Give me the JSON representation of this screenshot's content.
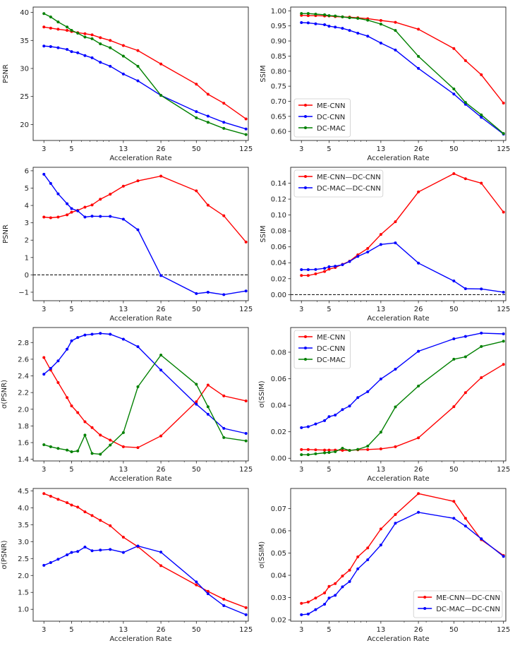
{
  "colors": {
    "ME-CNN": "#ff0000",
    "DC-CNN": "#0000ff",
    "DC-MAC": "#008000",
    "ME-CNN—DC-CNN": "#ff0000",
    "DC-MAC—DC-CNN": "#0000ff"
  },
  "chart_data": [
    {
      "type": "line",
      "xlabel": "Acceleration Rate",
      "ylabel": "PSNR",
      "xscale": "log",
      "x": [
        3,
        3.4,
        3.9,
        4.6,
        5,
        5.6,
        6.4,
        7.3,
        8.5,
        10.2,
        13,
        17,
        26,
        50,
        62,
        83,
        125
      ],
      "xticks": [
        3,
        5,
        13,
        26,
        50,
        125
      ],
      "xlim": [
        2.46,
        130.5
      ],
      "yticks": [
        20,
        25,
        30,
        35,
        40
      ],
      "ytick_labels": [
        "20",
        "25",
        "30",
        "35",
        "40"
      ],
      "ylim": [
        17.15,
        40.96
      ],
      "legend": null,
      "zero_line": false,
      "series": [
        {
          "name": "ME-CNN",
          "values": [
            37.4,
            37.2,
            37.0,
            36.8,
            36.6,
            36.4,
            36.2,
            36.0,
            35.5,
            35.0,
            34.1,
            33.2,
            30.8,
            27.2,
            25.4,
            23.8,
            21.0
          ]
        },
        {
          "name": "DC-CNN",
          "values": [
            34.0,
            33.9,
            33.7,
            33.4,
            33.0,
            32.8,
            32.3,
            31.9,
            31.1,
            30.4,
            29.0,
            27.8,
            25.2,
            22.3,
            21.5,
            20.4,
            19.2
          ]
        },
        {
          "name": "DC-MAC",
          "values": [
            39.8,
            39.2,
            38.3,
            37.4,
            36.8,
            36.3,
            35.6,
            35.3,
            34.4,
            33.7,
            32.2,
            30.4,
            25.2,
            21.2,
            20.4,
            19.3,
            18.2
          ]
        }
      ]
    },
    {
      "type": "line",
      "xlabel": "Acceleration Rate",
      "ylabel": "SSIM",
      "xscale": "log",
      "x": [
        3,
        3.4,
        3.9,
        4.6,
        5,
        5.6,
        6.4,
        7.3,
        8.5,
        10.2,
        13,
        17,
        26,
        50,
        62,
        83,
        125
      ],
      "xticks": [
        3,
        5,
        13,
        26,
        50,
        125
      ],
      "xlim": [
        2.46,
        130.5
      ],
      "yticks": [
        0.6,
        0.65,
        0.7,
        0.75,
        0.8,
        0.85,
        0.9,
        0.95,
        1.0
      ],
      "ytick_labels": [
        "0.60",
        "0.65",
        "0.70",
        "0.75",
        "0.80",
        "0.85",
        "0.90",
        "0.95",
        "1.00"
      ],
      "ylim": [
        0.57,
        1.0125
      ],
      "legend": "lower-left",
      "zero_line": false,
      "series": [
        {
          "name": "ME-CNN",
          "values": [
            0.985,
            0.984,
            0.984,
            0.983,
            0.983,
            0.981,
            0.98,
            0.979,
            0.977,
            0.974,
            0.968,
            0.962,
            0.939,
            0.875,
            0.835,
            0.788,
            0.694
          ]
        },
        {
          "name": "DC-CNN",
          "values": [
            0.961,
            0.96,
            0.957,
            0.954,
            0.949,
            0.946,
            0.942,
            0.935,
            0.926,
            0.916,
            0.893,
            0.87,
            0.809,
            0.724,
            0.69,
            0.647,
            0.591
          ]
        },
        {
          "name": "DC-MAC",
          "values": [
            0.991,
            0.991,
            0.989,
            0.987,
            0.984,
            0.983,
            0.98,
            0.977,
            0.975,
            0.969,
            0.956,
            0.935,
            0.849,
            0.741,
            0.696,
            0.655,
            0.593
          ]
        }
      ]
    },
    {
      "type": "line",
      "xlabel": "Acceleration Rate",
      "ylabel": "PSNR",
      "xscale": "log",
      "x": [
        3,
        3.4,
        3.9,
        4.6,
        5,
        5.6,
        6.4,
        7.3,
        8.5,
        10.2,
        13,
        17,
        26,
        50,
        62,
        83,
        125
      ],
      "xticks": [
        3,
        5,
        13,
        26,
        50,
        125
      ],
      "xlim": [
        2.46,
        130.5
      ],
      "yticks": [
        -1,
        0,
        1,
        2,
        3,
        4,
        5,
        6
      ],
      "ytick_labels": [
        "−1",
        "0",
        "1",
        "2",
        "3",
        "4",
        "5",
        "6"
      ],
      "ylim": [
        -1.49,
        6.2
      ],
      "legend": null,
      "zero_line": true,
      "series": [
        {
          "name": "ME-CNN—DC-CNN",
          "values": [
            3.33,
            3.29,
            3.33,
            3.46,
            3.61,
            3.72,
            3.9,
            4.03,
            4.36,
            4.65,
            5.11,
            5.42,
            5.69,
            4.84,
            4.02,
            3.41,
            1.89
          ]
        },
        {
          "name": "DC-MAC—DC-CNN",
          "values": [
            5.8,
            5.27,
            4.67,
            4.1,
            3.82,
            3.69,
            3.33,
            3.38,
            3.37,
            3.37,
            3.21,
            2.6,
            -0.04,
            -1.08,
            -1.0,
            -1.14,
            -0.93
          ]
        }
      ]
    },
    {
      "type": "line",
      "xlabel": "Acceleration Rate",
      "ylabel": "SSIM",
      "xscale": "log",
      "x": [
        3,
        3.4,
        3.9,
        4.6,
        5,
        5.6,
        6.4,
        7.3,
        8.5,
        10.2,
        13,
        17,
        26,
        50,
        62,
        83,
        125
      ],
      "xticks": [
        3,
        5,
        13,
        26,
        50,
        125
      ],
      "xlim": [
        2.46,
        130.5
      ],
      "yticks": [
        0,
        0.02,
        0.04,
        0.06,
        0.08,
        0.1,
        0.12,
        0.14
      ],
      "ytick_labels": [
        "0.00",
        "0.02",
        "0.04",
        "0.06",
        "0.08",
        "0.10",
        "0.12",
        "0.14"
      ],
      "ylim": [
        -0.0077,
        0.16
      ],
      "legend": "upper-left",
      "zero_line": true,
      "series": [
        {
          "name": "ME-CNN—DC-CNN",
          "values": [
            0.024,
            0.024,
            0.026,
            0.029,
            0.032,
            0.034,
            0.038,
            0.042,
            0.05,
            0.058,
            0.0756,
            0.0916,
            0.129,
            0.152,
            0.1456,
            0.14,
            0.1037
          ]
        },
        {
          "name": "DC-MAC—DC-CNN",
          "values": [
            0.0313,
            0.0313,
            0.0316,
            0.033,
            0.035,
            0.0357,
            0.0375,
            0.0416,
            0.048,
            0.0535,
            0.063,
            0.065,
            0.0396,
            0.0171,
            0.0074,
            0.0071,
            0.003
          ]
        }
      ]
    },
    {
      "type": "line",
      "xlabel": "Acceleration Rate",
      "ylabel": "σ(PSNR)",
      "xscale": "log",
      "x": [
        3,
        3.4,
        3.9,
        4.6,
        5,
        5.6,
        6.4,
        7.3,
        8.5,
        10.2,
        13,
        17,
        26,
        50,
        62,
        83,
        125
      ],
      "xticks": [
        3,
        5,
        13,
        26,
        50,
        125
      ],
      "xlim": [
        2.46,
        130.5
      ],
      "yticks": [
        1.4,
        1.6,
        1.8,
        2.0,
        2.2,
        2.4,
        2.6,
        2.8
      ],
      "ytick_labels": [
        "1.4",
        "1.6",
        "1.8",
        "2.0",
        "2.2",
        "2.4",
        "2.6",
        "2.8"
      ],
      "ylim": [
        1.38,
        2.98
      ],
      "legend": null,
      "zero_line": false,
      "series": [
        {
          "name": "ME-CNN",
          "values": [
            2.62,
            2.47,
            2.32,
            2.14,
            2.04,
            1.96,
            1.85,
            1.78,
            1.69,
            1.63,
            1.55,
            1.54,
            1.68,
            2.09,
            2.29,
            2.16,
            2.1
          ]
        },
        {
          "name": "DC-CNN",
          "values": [
            2.42,
            2.49,
            2.58,
            2.72,
            2.82,
            2.86,
            2.89,
            2.9,
            2.91,
            2.9,
            2.84,
            2.75,
            2.47,
            2.06,
            1.94,
            1.77,
            1.71
          ]
        },
        {
          "name": "DC-MAC",
          "values": [
            1.575,
            1.55,
            1.53,
            1.51,
            1.49,
            1.5,
            1.69,
            1.47,
            1.46,
            1.57,
            1.72,
            2.27,
            2.65,
            2.3,
            2.03,
            1.66,
            1.62
          ]
        }
      ]
    },
    {
      "type": "line",
      "xlabel": "Acceleration Rate",
      "ylabel": "σ(SSIM)",
      "xscale": "log",
      "x": [
        3,
        3.4,
        3.9,
        4.6,
        5,
        5.6,
        6.4,
        7.3,
        8.5,
        10.2,
        13,
        17,
        26,
        50,
        62,
        83,
        125
      ],
      "xticks": [
        3,
        5,
        13,
        26,
        50,
        125
      ],
      "xlim": [
        2.46,
        130.5
      ],
      "yticks": [
        0,
        0.02,
        0.04,
        0.06,
        0.08
      ],
      "ytick_labels": [
        "0.00",
        "0.02",
        "0.04",
        "0.06",
        "0.08"
      ],
      "ylim": [
        -0.002,
        0.0986
      ],
      "legend": "upper-left",
      "zero_line": false,
      "series": [
        {
          "name": "ME-CNN",
          "values": [
            0.0066,
            0.0066,
            0.0064,
            0.0062,
            0.0062,
            0.0062,
            0.006,
            0.006,
            0.0064,
            0.0066,
            0.0071,
            0.0087,
            0.0154,
            0.0389,
            0.0495,
            0.0608,
            0.0708
          ]
        },
        {
          "name": "DC-CNN",
          "values": [
            0.0231,
            0.0238,
            0.0259,
            0.0284,
            0.0314,
            0.0326,
            0.0367,
            0.0394,
            0.0458,
            0.0502,
            0.0598,
            0.0672,
            0.0807,
            0.0901,
            0.0919,
            0.0944,
            0.0938
          ]
        },
        {
          "name": "DC-MAC",
          "values": [
            0.0027,
            0.0027,
            0.0034,
            0.0041,
            0.0044,
            0.005,
            0.0076,
            0.0059,
            0.0067,
            0.0092,
            0.0197,
            0.0387,
            0.0545,
            0.0747,
            0.0765,
            0.0843,
            0.0883
          ]
        }
      ]
    },
    {
      "type": "line",
      "xlabel": "Acceleration Rate",
      "ylabel": "σ(PSNR)",
      "xscale": "log",
      "x": [
        3,
        3.4,
        3.9,
        4.6,
        5,
        5.6,
        6.4,
        7.3,
        8.5,
        10.2,
        13,
        17,
        26,
        50,
        62,
        83,
        125
      ],
      "xticks": [
        3,
        5,
        13,
        26,
        50,
        125
      ],
      "xlim": [
        2.46,
        130.5
      ],
      "yticks": [
        1.0,
        1.5,
        2.0,
        2.5,
        3.0,
        3.5,
        4.0,
        4.5
      ],
      "ytick_labels": [
        "1.0",
        "1.5",
        "2.0",
        "2.5",
        "3.0",
        "3.5",
        "4.0",
        "4.5"
      ],
      "ylim": [
        0.65,
        4.57
      ],
      "legend": null,
      "zero_line": false,
      "series": [
        {
          "name": "ME-CNN—DC-CNN",
          "values": [
            4.42,
            4.34,
            4.25,
            4.15,
            4.08,
            4.02,
            3.88,
            3.77,
            3.63,
            3.47,
            3.13,
            2.85,
            2.29,
            1.72,
            1.53,
            1.3,
            1.05
          ]
        },
        {
          "name": "DC-MAC—DC-CNN",
          "values": [
            2.3,
            2.38,
            2.48,
            2.61,
            2.68,
            2.71,
            2.84,
            2.73,
            2.75,
            2.77,
            2.68,
            2.87,
            2.69,
            1.81,
            1.46,
            1.11,
            0.84
          ]
        }
      ]
    },
    {
      "type": "line",
      "xlabel": "Acceleration Rate",
      "ylabel": "σ(SSIM)",
      "xscale": "log",
      "x": [
        3,
        3.4,
        3.9,
        4.6,
        5,
        5.6,
        6.4,
        7.3,
        8.5,
        10.2,
        13,
        17,
        26,
        50,
        62,
        83,
        125
      ],
      "xticks": [
        3,
        5,
        13,
        26,
        50,
        125
      ],
      "xlim": [
        2.46,
        130.5
      ],
      "yticks": [
        0.02,
        0.03,
        0.04,
        0.05,
        0.06,
        0.07
      ],
      "ytick_labels": [
        "0.02",
        "0.03",
        "0.04",
        "0.05",
        "0.06",
        "0.07"
      ],
      "ylim": [
        0.0194,
        0.079
      ],
      "legend": "lower-right",
      "zero_line": false,
      "series": [
        {
          "name": "ME-CNN—DC-CNN",
          "values": [
            0.0274,
            0.028,
            0.0298,
            0.0321,
            0.035,
            0.0363,
            0.0397,
            0.0423,
            0.0483,
            0.0523,
            0.0608,
            0.0673,
            0.0767,
            0.0732,
            0.0656,
            0.056,
            0.0489
          ]
        },
        {
          "name": "DC-MAC—DC-CNN",
          "values": [
            0.0223,
            0.0226,
            0.0246,
            0.027,
            0.0298,
            0.031,
            0.0348,
            0.0372,
            0.0429,
            0.047,
            0.0536,
            0.0634,
            0.0683,
            0.0656,
            0.0621,
            0.0564,
            0.0485
          ]
        }
      ]
    }
  ]
}
